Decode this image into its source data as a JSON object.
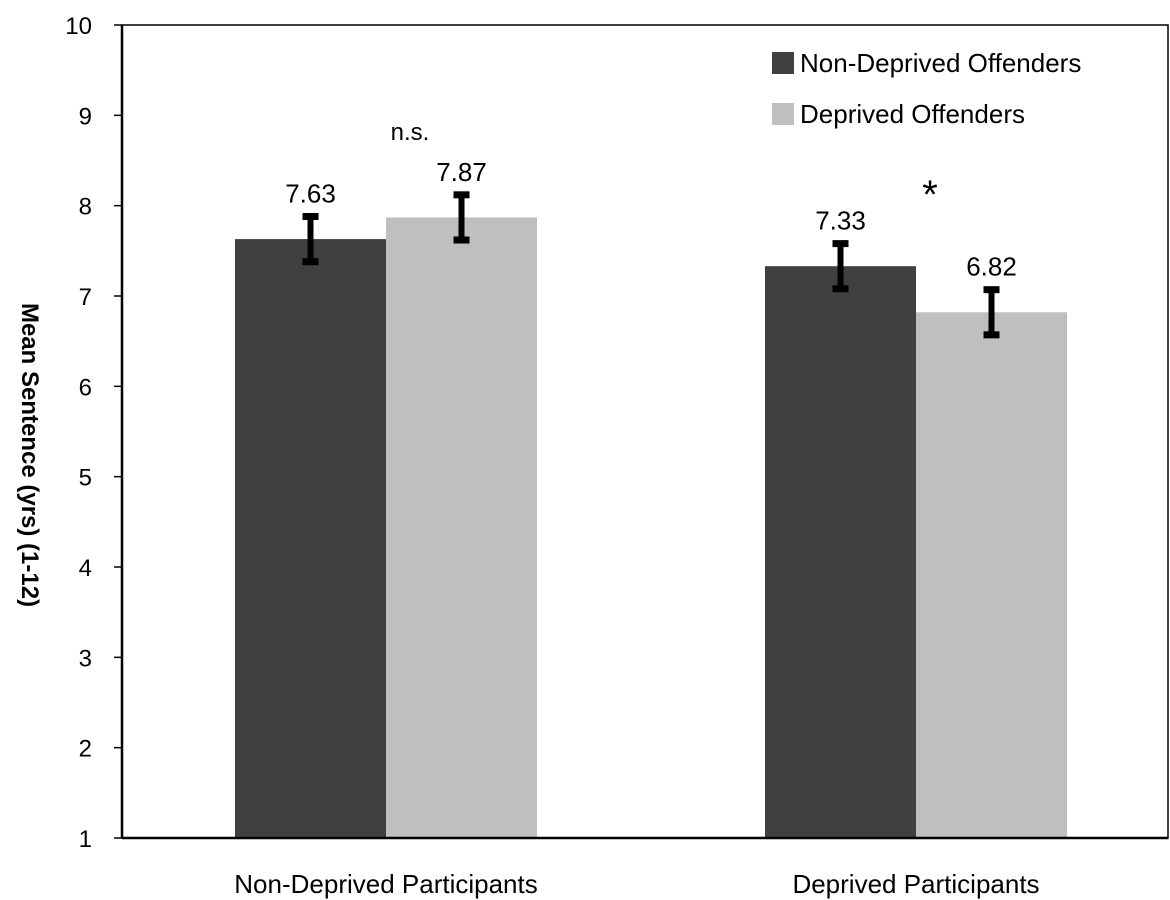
{
  "chart_data": {
    "type": "bar",
    "title": "",
    "xlabel": "",
    "ylabel": "Mean Sentence (yrs) (1-12)",
    "ylim": [
      1,
      10
    ],
    "yticks": [
      1,
      2,
      3,
      4,
      5,
      6,
      7,
      8,
      9,
      10
    ],
    "grid": false,
    "legend_position": "top-right",
    "categories": [
      "Non-Deprived Participants",
      "Deprived Participants"
    ],
    "series": [
      {
        "name": "Non-Deprived Offenders",
        "color": "#404040",
        "values": [
          7.63,
          7.33
        ],
        "errors": [
          0.25,
          0.25
        ],
        "value_labels": [
          "7.63",
          "7.33"
        ]
      },
      {
        "name": "Deprived Offenders",
        "color": "#bfbfbf",
        "values": [
          7.87,
          6.82
        ],
        "errors": [
          0.25,
          0.25
        ],
        "value_labels": [
          "7.87",
          "6.82"
        ]
      }
    ],
    "annotations": [
      {
        "text": "n.s.",
        "category": 0
      },
      {
        "text": "*",
        "category": 1
      }
    ]
  }
}
